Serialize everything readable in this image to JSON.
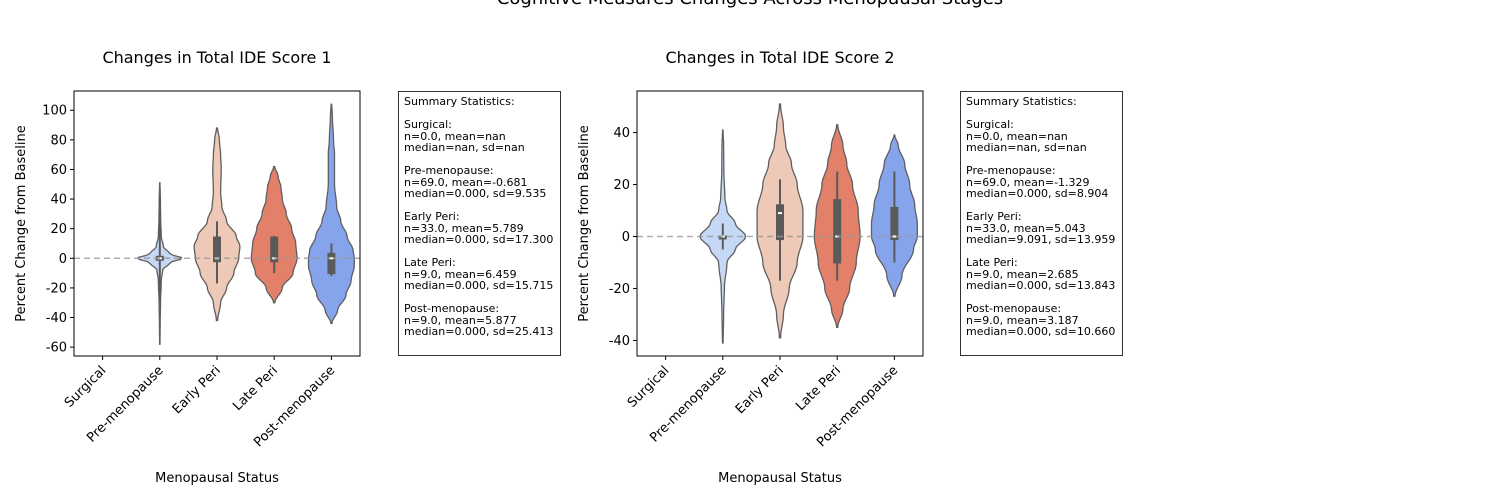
{
  "figure": {
    "suptitle": "Cognitive Measures Changes Across Menopausal Stages"
  },
  "chart_data": [
    {
      "type": "violin",
      "title": "Changes in Total IDE Score 1",
      "xlabel": "Menopausal Status",
      "ylabel": "Percent Change from Baseline",
      "categories": [
        "Surgical",
        "Pre-menopause",
        "Early Peri",
        "Late Peri",
        "Post-menopause"
      ],
      "colors": [
        "#b8cff9",
        "#c5d8f5",
        "#efc9b7",
        "#e2806a",
        "#86a4ec"
      ],
      "ylim": [
        -66,
        113
      ],
      "yticks": [
        -60,
        -40,
        -20,
        0,
        20,
        40,
        60,
        80,
        100
      ],
      "reference_line": 0,
      "violins": [
        null,
        {
          "min": -58,
          "max": 51,
          "q1": -1,
          "median": 0,
          "q3": 1,
          "whisker_low": -30,
          "whisker_high": 40,
          "profile": [
            [
              -58,
              0.3
            ],
            [
              -45,
              0.5
            ],
            [
              -30,
              1
            ],
            [
              -15,
              2
            ],
            [
              -8,
              4
            ],
            [
              -3,
              14
            ],
            [
              0,
              32
            ],
            [
              3,
              14
            ],
            [
              8,
              5
            ],
            [
              15,
              2
            ],
            [
              25,
              1.2
            ],
            [
              40,
              0.8
            ],
            [
              51,
              0.2
            ]
          ]
        },
        {
          "min": -42,
          "max": 88,
          "q1": -2,
          "median": 0,
          "q3": 14,
          "whisker_low": -17,
          "whisker_high": 25,
          "profile": [
            [
              -42,
              0.5
            ],
            [
              -30,
              3
            ],
            [
              -20,
              8
            ],
            [
              -10,
              14
            ],
            [
              0,
              18
            ],
            [
              8,
              19
            ],
            [
              15,
              16
            ],
            [
              25,
              8
            ],
            [
              35,
              4
            ],
            [
              45,
              3
            ],
            [
              60,
              3.5
            ],
            [
              70,
              3
            ],
            [
              80,
              2
            ],
            [
              88,
              0.4
            ]
          ]
        },
        {
          "min": -30,
          "max": 62,
          "q1": -2,
          "median": 0,
          "q3": 14,
          "whisker_low": -10,
          "whisker_high": 15,
          "profile": [
            [
              -30,
              0.5
            ],
            [
              -20,
              6
            ],
            [
              -10,
              14
            ],
            [
              0,
              17
            ],
            [
              10,
              16
            ],
            [
              20,
              13
            ],
            [
              30,
              9
            ],
            [
              40,
              6
            ],
            [
              48,
              5
            ],
            [
              55,
              3
            ],
            [
              62,
              0.4
            ]
          ]
        },
        {
          "min": -44,
          "max": 104,
          "q1": -10,
          "median": 0,
          "q3": 3,
          "whisker_low": -12,
          "whisker_high": 10,
          "profile": [
            [
              -44,
              0.5
            ],
            [
              -35,
              6
            ],
            [
              -25,
              14
            ],
            [
              -15,
              19
            ],
            [
              -5,
              22
            ],
            [
              0,
              22
            ],
            [
              5,
              21
            ],
            [
              15,
              15
            ],
            [
              25,
              9
            ],
            [
              35,
              5
            ],
            [
              50,
              3
            ],
            [
              60,
              3
            ],
            [
              70,
              3
            ],
            [
              80,
              2
            ],
            [
              95,
              1
            ],
            [
              104,
              0.3
            ]
          ]
        }
      ],
      "stats_text": "Summary Statistics:\n\nSurgical:\nn=0.0, mean=nan\nmedian=nan, sd=nan\n\nPre-menopause:\nn=69.0, mean=-0.681\nmedian=0.000, sd=9.535\n\nEarly Peri:\nn=33.0, mean=5.789\nmedian=0.000, sd=17.300\n\nLate Peri:\nn=9.0, mean=6.459\nmedian=0.000, sd=15.715\n\nPost-menopause:\nn=9.0, mean=5.877\nmedian=0.000, sd=25.413"
    },
    {
      "type": "violin",
      "title": "Changes in Total IDE Score 2",
      "xlabel": "Menopausal Status",
      "ylabel": "Percent Change from Baseline",
      "categories": [
        "Surgical",
        "Pre-menopause",
        "Early Peri",
        "Late Peri",
        "Post-menopause"
      ],
      "colors": [
        "#b8cff9",
        "#c5d8f5",
        "#efc9b7",
        "#e2806a",
        "#86a4ec"
      ],
      "ylim": [
        -46,
        56
      ],
      "yticks": [
        -40,
        -20,
        0,
        20,
        40
      ],
      "reference_line": 0,
      "violins": [
        null,
        {
          "min": -41,
          "max": 41,
          "q1": 0,
          "median": 0,
          "q3": 0,
          "whisker_low": -5,
          "whisker_high": 5,
          "profile": [
            [
              -41,
              0.3
            ],
            [
              -30,
              0.8
            ],
            [
              -20,
              1.5
            ],
            [
              -10,
              4
            ],
            [
              -5,
              12
            ],
            [
              0,
              22
            ],
            [
              5,
              12
            ],
            [
              10,
              4
            ],
            [
              15,
              2
            ],
            [
              25,
              1
            ],
            [
              35,
              0.8
            ],
            [
              41,
              0.2
            ]
          ]
        },
        {
          "min": -39,
          "max": 51,
          "q1": -1,
          "median": 9,
          "q3": 12,
          "whisker_low": -17,
          "whisker_high": 22,
          "profile": [
            [
              -39,
              0.5
            ],
            [
              -30,
              3
            ],
            [
              -20,
              8
            ],
            [
              -10,
              15
            ],
            [
              0,
              20
            ],
            [
              10,
              20
            ],
            [
              20,
              15
            ],
            [
              28,
              10
            ],
            [
              35,
              5
            ],
            [
              42,
              3
            ],
            [
              51,
              0.4
            ]
          ]
        },
        {
          "min": -35,
          "max": 43,
          "q1": -10,
          "median": 0,
          "q3": 14,
          "whisker_low": -17,
          "whisker_high": 25,
          "profile": [
            [
              -35,
              0.5
            ],
            [
              -28,
              6
            ],
            [
              -20,
              13
            ],
            [
              -10,
              20
            ],
            [
              0,
              24
            ],
            [
              10,
              22
            ],
            [
              20,
              16
            ],
            [
              28,
              10
            ],
            [
              35,
              6
            ],
            [
              43,
              0.5
            ]
          ]
        },
        {
          "min": -23,
          "max": 39,
          "q1": -1,
          "median": 0,
          "q3": 11,
          "whisker_low": -10,
          "whisker_high": 25,
          "profile": [
            [
              -23,
              0.5
            ],
            [
              -15,
              6
            ],
            [
              -5,
              15
            ],
            [
              0,
              18
            ],
            [
              5,
              18
            ],
            [
              12,
              16
            ],
            [
              20,
              12
            ],
            [
              28,
              8
            ],
            [
              35,
              3
            ],
            [
              39,
              0.3
            ]
          ]
        }
      ],
      "stats_text": "Summary Statistics:\n\nSurgical:\nn=0.0, mean=nan\nmedian=nan, sd=nan\n\nPre-menopause:\nn=69.0, mean=-1.329\nmedian=0.000, sd=8.904\n\nEarly Peri:\nn=33.0, mean=5.043\nmedian=9.091, sd=13.959\n\nLate Peri:\nn=9.0, mean=2.685\nmedian=0.000, sd=13.843\n\nPost-menopause:\nn=9.0, mean=3.187\nmedian=0.000, sd=10.660"
    }
  ]
}
